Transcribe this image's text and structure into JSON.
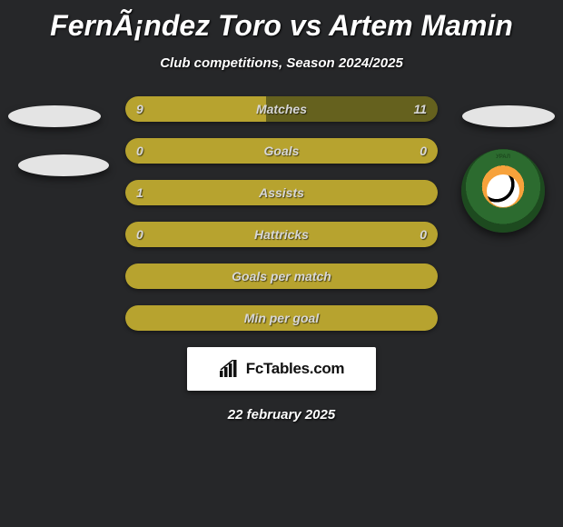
{
  "title": "FernÃ¡ndez Toro vs Artem Mamin",
  "subtitle": "Club competitions, Season 2024/2025",
  "date": "22 february 2025",
  "brand": "FcTables.com",
  "colors": {
    "background": "#262729",
    "bar_bg": "#65611e",
    "bar_fill": "#b7a32f",
    "text": "#d7d7d7"
  },
  "bars": [
    {
      "label": "Matches",
      "left": "9",
      "right": "11",
      "fill_left_pct": 45,
      "fill_right_pct": 55,
      "full": false
    },
    {
      "label": "Goals",
      "left": "0",
      "right": "0",
      "fill_left_pct": 0,
      "fill_right_pct": 0,
      "full": true
    },
    {
      "label": "Assists",
      "left": "1",
      "right": "",
      "fill_left_pct": 0,
      "fill_right_pct": 0,
      "full": true
    },
    {
      "label": "Hattricks",
      "left": "0",
      "right": "0",
      "fill_left_pct": 0,
      "fill_right_pct": 0,
      "full": true
    },
    {
      "label": "Goals per match",
      "left": "",
      "right": "",
      "fill_left_pct": 0,
      "fill_right_pct": 0,
      "full": true
    },
    {
      "label": "Min per goal",
      "left": "",
      "right": "",
      "fill_left_pct": 0,
      "fill_right_pct": 0,
      "full": true
    }
  ]
}
